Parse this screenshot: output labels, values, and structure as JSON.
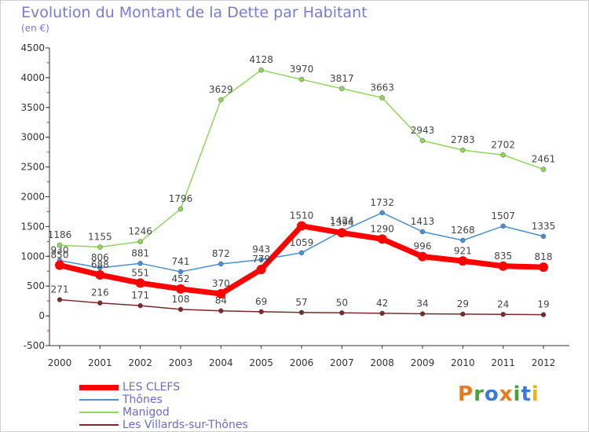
{
  "title": "Evolution du Montant de la Dette par Habitant",
  "subtitle": "(en €)",
  "logo": {
    "text": "Proxiti",
    "letter_colors": [
      "#e87a1e",
      "#4aa03c",
      "#3c7ad6",
      "#e87a1e",
      "#4aa03c",
      "#3c7ad6",
      "#e8b41e"
    ]
  },
  "chart_data": {
    "type": "line",
    "x": [
      2000,
      2001,
      2002,
      2003,
      2004,
      2005,
      2006,
      2007,
      2008,
      2009,
      2010,
      2011,
      2012
    ],
    "ylim": [
      -500,
      4500
    ],
    "yticks": [
      -500,
      0,
      500,
      1000,
      1500,
      2000,
      2500,
      3000,
      3500,
      4000,
      4500
    ],
    "grid": false,
    "legend_position": "bottom-left",
    "series": [
      {
        "name": "LES CLEFS",
        "color": "#ff0000",
        "width": 7,
        "values": [
          850,
          688,
          551,
          452,
          370,
          779,
          1510,
          1394,
          1290,
          996,
          921,
          835,
          818
        ],
        "labels": [
          "850",
          "688",
          "551",
          "452",
          "370",
          "779",
          "1510",
          "1394",
          "1290",
          "996",
          "921",
          "835",
          "818"
        ]
      },
      {
        "name": "Thônes",
        "color": "#4a8fcf",
        "width": 1.5,
        "values": [
          930,
          806,
          881,
          741,
          872,
          943,
          1059,
          1424,
          1732,
          1413,
          1268,
          1507,
          1335
        ],
        "labels": [
          "930",
          "806",
          "881",
          "741",
          "872",
          "943",
          "1059",
          "1424",
          "1732",
          "1413",
          "1268",
          "1507",
          "1335"
        ]
      },
      {
        "name": "Manigod",
        "color": "#8fd65a",
        "width": 1.5,
        "values": [
          1186,
          1155,
          1246,
          1796,
          3629,
          4128,
          3970,
          3817,
          3663,
          2943,
          2783,
          2702,
          2461
        ],
        "labels": [
          "1186",
          "1155",
          "1246",
          "1796",
          "3629",
          "4128",
          "3970",
          "3817",
          "3663",
          "2943",
          "2783",
          "2702",
          "2461"
        ]
      },
      {
        "name": "Les Villards-sur-Thônes",
        "color": "#7a2a2a",
        "width": 1.5,
        "values": [
          271,
          216,
          171,
          108,
          84,
          69,
          57,
          50,
          42,
          34,
          29,
          24,
          19
        ],
        "labels": [
          "271",
          "216",
          "171",
          "108",
          "84",
          "69",
          "57",
          "50",
          "42",
          "34",
          "29",
          "24",
          "19"
        ]
      }
    ]
  }
}
